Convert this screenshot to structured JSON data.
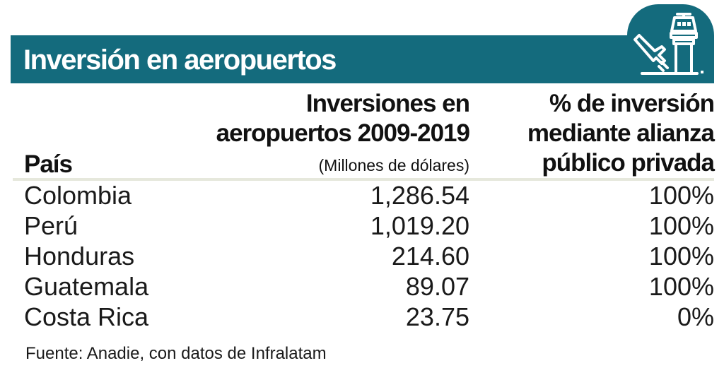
{
  "title": "Inversión en aeropuertos",
  "icon": "airport-tower-plane-icon",
  "colors": {
    "banner": "#146b7d",
    "text": "#111111",
    "rule": "#e6e8dc"
  },
  "headers": {
    "country": "País",
    "investment_line1": "Inversiones en",
    "investment_line2": "aeropuertos 2009-2019",
    "investment_units": "(Millones de dólares)",
    "ppp_line1": "% de inversión",
    "ppp_line2": "mediante alianza",
    "ppp_line3": "público privada"
  },
  "rows": [
    {
      "country": "Colombia",
      "investment": "1,286.54",
      "ppp": "100%"
    },
    {
      "country": "Perú",
      "investment": "1,019.20",
      "ppp": "100%"
    },
    {
      "country": "Honduras",
      "investment": "214.60",
      "ppp": "100%"
    },
    {
      "country": "Guatemala",
      "investment": "89.07",
      "ppp": "100%"
    },
    {
      "country": "Costa Rica",
      "investment": "23.75",
      "ppp": "0%"
    }
  ],
  "source": "Fuente: Anadie, con datos de Infralatam",
  "chart_data": {
    "type": "table",
    "title": "Inversión en aeropuertos",
    "columns": [
      "País",
      "Inversiones en aeropuertos 2009-2019 (Millones de dólares)",
      "% de inversión mediante alianza público privada"
    ],
    "categories": [
      "Colombia",
      "Perú",
      "Honduras",
      "Guatemala",
      "Costa Rica"
    ],
    "series": [
      {
        "name": "Inversiones en aeropuertos 2009-2019 (Millones de dólares)",
        "values": [
          1286.54,
          1019.2,
          214.6,
          89.07,
          23.75
        ]
      },
      {
        "name": "% de inversión mediante alianza público privada",
        "values": [
          100,
          100,
          100,
          100,
          0
        ]
      }
    ]
  }
}
